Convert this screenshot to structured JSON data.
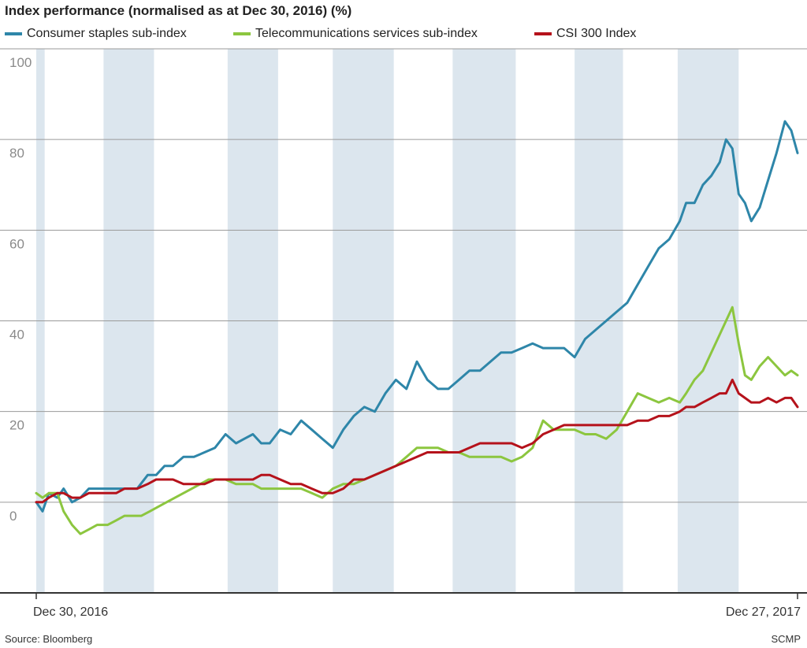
{
  "header": {
    "title": "Index performance (normalised as at Dec 30, 2016) (%)"
  },
  "footer": {
    "source": "Source: Bloomberg",
    "credit": "SCMP"
  },
  "chart_data": {
    "type": "line",
    "title": "Index performance (normalised as at Dec 30, 2016) (%)",
    "ylim": [
      -20,
      100
    ],
    "yticks": [
      0,
      20,
      40,
      60,
      80,
      100
    ],
    "grid": true,
    "legend_position": "top",
    "x_labels": [
      "Dec 30, 2016",
      "Dec 27, 2017"
    ],
    "x_range": [
      "2016-12-30",
      "2017-12-27"
    ],
    "shaded_bands": [
      [
        "2016-12-30",
        "2017-01-03"
      ],
      [
        "2017-01-31",
        "2017-02-24"
      ],
      [
        "2017-03-31",
        "2017-04-24"
      ],
      [
        "2017-05-20",
        "2017-06-18"
      ],
      [
        "2017-07-16",
        "2017-08-15"
      ],
      [
        "2017-09-12",
        "2017-10-05"
      ],
      [
        "2017-10-31",
        "2017-11-29"
      ]
    ],
    "series": [
      {
        "name": "Consumer staples sub-index",
        "color": "#2e86a9",
        "points": [
          [
            "2016-12-30",
            0
          ],
          [
            "2017-01-02",
            -2
          ],
          [
            "2017-01-05",
            2
          ],
          [
            "2017-01-09",
            1
          ],
          [
            "2017-01-12",
            3
          ],
          [
            "2017-01-16",
            0
          ],
          [
            "2017-01-20",
            1
          ],
          [
            "2017-01-24",
            3
          ],
          [
            "2017-02-01",
            3
          ],
          [
            "2017-02-06",
            3
          ],
          [
            "2017-02-10",
            3
          ],
          [
            "2017-02-16",
            3
          ],
          [
            "2017-02-21",
            6
          ],
          [
            "2017-02-25",
            6
          ],
          [
            "2017-03-01",
            8
          ],
          [
            "2017-03-05",
            8
          ],
          [
            "2017-03-10",
            10
          ],
          [
            "2017-03-15",
            10
          ],
          [
            "2017-03-20",
            11
          ],
          [
            "2017-03-25",
            12
          ],
          [
            "2017-03-30",
            15
          ],
          [
            "2017-04-04",
            13
          ],
          [
            "2017-04-08",
            14
          ],
          [
            "2017-04-12",
            15
          ],
          [
            "2017-04-16",
            13
          ],
          [
            "2017-04-20",
            13
          ],
          [
            "2017-04-25",
            16
          ],
          [
            "2017-04-30",
            15
          ],
          [
            "2017-05-05",
            18
          ],
          [
            "2017-05-10",
            16
          ],
          [
            "2017-05-15",
            14
          ],
          [
            "2017-05-20",
            12
          ],
          [
            "2017-05-25",
            16
          ],
          [
            "2017-05-30",
            19
          ],
          [
            "2017-06-04",
            21
          ],
          [
            "2017-06-09",
            20
          ],
          [
            "2017-06-14",
            24
          ],
          [
            "2017-06-19",
            27
          ],
          [
            "2017-06-24",
            25
          ],
          [
            "2017-06-29",
            31
          ],
          [
            "2017-07-04",
            27
          ],
          [
            "2017-07-09",
            25
          ],
          [
            "2017-07-14",
            25
          ],
          [
            "2017-07-19",
            27
          ],
          [
            "2017-07-24",
            29
          ],
          [
            "2017-07-29",
            29
          ],
          [
            "2017-08-03",
            31
          ],
          [
            "2017-08-08",
            33
          ],
          [
            "2017-08-13",
            33
          ],
          [
            "2017-08-18",
            34
          ],
          [
            "2017-08-23",
            35
          ],
          [
            "2017-08-28",
            34
          ],
          [
            "2017-09-02",
            34
          ],
          [
            "2017-09-07",
            34
          ],
          [
            "2017-09-12",
            32
          ],
          [
            "2017-09-17",
            36
          ],
          [
            "2017-09-22",
            38
          ],
          [
            "2017-09-27",
            40
          ],
          [
            "2017-10-02",
            42
          ],
          [
            "2017-10-07",
            44
          ],
          [
            "2017-10-12",
            48
          ],
          [
            "2017-10-17",
            52
          ],
          [
            "2017-10-22",
            56
          ],
          [
            "2017-10-27",
            58
          ],
          [
            "2017-11-01",
            62
          ],
          [
            "2017-11-04",
            66
          ],
          [
            "2017-11-08",
            66
          ],
          [
            "2017-11-12",
            70
          ],
          [
            "2017-11-16",
            72
          ],
          [
            "2017-11-20",
            75
          ],
          [
            "2017-11-23",
            80
          ],
          [
            "2017-11-26",
            78
          ],
          [
            "2017-11-29",
            68
          ],
          [
            "2017-12-02",
            66
          ],
          [
            "2017-12-05",
            62
          ],
          [
            "2017-12-09",
            65
          ],
          [
            "2017-12-13",
            71
          ],
          [
            "2017-12-17",
            77
          ],
          [
            "2017-12-21",
            84
          ],
          [
            "2017-12-24",
            82
          ],
          [
            "2017-12-27",
            77
          ]
        ]
      },
      {
        "name": "Telecommunications services sub-index",
        "color": "#8cc63f",
        "points": [
          [
            "2016-12-30",
            2
          ],
          [
            "2017-01-02",
            1
          ],
          [
            "2017-01-05",
            2
          ],
          [
            "2017-01-09",
            2
          ],
          [
            "2017-01-12",
            -2
          ],
          [
            "2017-01-16",
            -5
          ],
          [
            "2017-01-20",
            -7
          ],
          [
            "2017-01-24",
            -6
          ],
          [
            "2017-01-28",
            -5
          ],
          [
            "2017-02-02",
            -5
          ],
          [
            "2017-02-06",
            -4
          ],
          [
            "2017-02-10",
            -3
          ],
          [
            "2017-02-14",
            -3
          ],
          [
            "2017-02-18",
            -3
          ],
          [
            "2017-02-22",
            -2
          ],
          [
            "2017-02-26",
            -1
          ],
          [
            "2017-03-02",
            0
          ],
          [
            "2017-03-06",
            1
          ],
          [
            "2017-03-10",
            2
          ],
          [
            "2017-03-14",
            3
          ],
          [
            "2017-03-18",
            4
          ],
          [
            "2017-03-22",
            5
          ],
          [
            "2017-03-26",
            5
          ],
          [
            "2017-03-30",
            5
          ],
          [
            "2017-04-04",
            4
          ],
          [
            "2017-04-08",
            4
          ],
          [
            "2017-04-12",
            4
          ],
          [
            "2017-04-16",
            3
          ],
          [
            "2017-04-20",
            3
          ],
          [
            "2017-04-24",
            3
          ],
          [
            "2017-04-30",
            3
          ],
          [
            "2017-05-05",
            3
          ],
          [
            "2017-05-10",
            2
          ],
          [
            "2017-05-15",
            1
          ],
          [
            "2017-05-20",
            3
          ],
          [
            "2017-05-25",
            4
          ],
          [
            "2017-05-30",
            4
          ],
          [
            "2017-06-04",
            5
          ],
          [
            "2017-06-09",
            6
          ],
          [
            "2017-06-14",
            7
          ],
          [
            "2017-06-19",
            8
          ],
          [
            "2017-06-24",
            10
          ],
          [
            "2017-06-29",
            12
          ],
          [
            "2017-07-04",
            12
          ],
          [
            "2017-07-09",
            12
          ],
          [
            "2017-07-14",
            11
          ],
          [
            "2017-07-19",
            11
          ],
          [
            "2017-07-24",
            10
          ],
          [
            "2017-07-29",
            10
          ],
          [
            "2017-08-03",
            10
          ],
          [
            "2017-08-08",
            10
          ],
          [
            "2017-08-13",
            9
          ],
          [
            "2017-08-18",
            10
          ],
          [
            "2017-08-23",
            12
          ],
          [
            "2017-08-28",
            18
          ],
          [
            "2017-09-02",
            16
          ],
          [
            "2017-09-07",
            16
          ],
          [
            "2017-09-12",
            16
          ],
          [
            "2017-09-17",
            15
          ],
          [
            "2017-09-22",
            15
          ],
          [
            "2017-09-27",
            14
          ],
          [
            "2017-10-02",
            16
          ],
          [
            "2017-10-07",
            20
          ],
          [
            "2017-10-12",
            24
          ],
          [
            "2017-10-17",
            23
          ],
          [
            "2017-10-22",
            22
          ],
          [
            "2017-10-27",
            23
          ],
          [
            "2017-11-01",
            22
          ],
          [
            "2017-11-04",
            24
          ],
          [
            "2017-11-08",
            27
          ],
          [
            "2017-11-12",
            29
          ],
          [
            "2017-11-16",
            33
          ],
          [
            "2017-11-20",
            37
          ],
          [
            "2017-11-23",
            40
          ],
          [
            "2017-11-26",
            43
          ],
          [
            "2017-11-29",
            35
          ],
          [
            "2017-12-02",
            28
          ],
          [
            "2017-12-05",
            27
          ],
          [
            "2017-12-09",
            30
          ],
          [
            "2017-12-13",
            32
          ],
          [
            "2017-12-17",
            30
          ],
          [
            "2017-12-21",
            28
          ],
          [
            "2017-12-24",
            29
          ],
          [
            "2017-12-27",
            28
          ]
        ]
      },
      {
        "name": "CSI 300 Index",
        "color": "#b5121b",
        "points": [
          [
            "2016-12-30",
            0
          ],
          [
            "2017-01-02",
            0
          ],
          [
            "2017-01-05",
            1
          ],
          [
            "2017-01-09",
            2
          ],
          [
            "2017-01-12",
            2
          ],
          [
            "2017-01-16",
            1
          ],
          [
            "2017-01-20",
            1
          ],
          [
            "2017-01-24",
            2
          ],
          [
            "2017-02-01",
            2
          ],
          [
            "2017-02-06",
            2
          ],
          [
            "2017-02-10",
            3
          ],
          [
            "2017-02-16",
            3
          ],
          [
            "2017-02-21",
            4
          ],
          [
            "2017-02-25",
            5
          ],
          [
            "2017-03-01",
            5
          ],
          [
            "2017-03-05",
            5
          ],
          [
            "2017-03-10",
            4
          ],
          [
            "2017-03-15",
            4
          ],
          [
            "2017-03-20",
            4
          ],
          [
            "2017-03-25",
            5
          ],
          [
            "2017-03-30",
            5
          ],
          [
            "2017-04-04",
            5
          ],
          [
            "2017-04-08",
            5
          ],
          [
            "2017-04-12",
            5
          ],
          [
            "2017-04-16",
            6
          ],
          [
            "2017-04-20",
            6
          ],
          [
            "2017-04-25",
            5
          ],
          [
            "2017-04-30",
            4
          ],
          [
            "2017-05-05",
            4
          ],
          [
            "2017-05-10",
            3
          ],
          [
            "2017-05-15",
            2
          ],
          [
            "2017-05-20",
            2
          ],
          [
            "2017-05-25",
            3
          ],
          [
            "2017-05-30",
            5
          ],
          [
            "2017-06-04",
            5
          ],
          [
            "2017-06-09",
            6
          ],
          [
            "2017-06-14",
            7
          ],
          [
            "2017-06-19",
            8
          ],
          [
            "2017-06-24",
            9
          ],
          [
            "2017-06-29",
            10
          ],
          [
            "2017-07-04",
            11
          ],
          [
            "2017-07-09",
            11
          ],
          [
            "2017-07-14",
            11
          ],
          [
            "2017-07-19",
            11
          ],
          [
            "2017-07-24",
            12
          ],
          [
            "2017-07-29",
            13
          ],
          [
            "2017-08-03",
            13
          ],
          [
            "2017-08-08",
            13
          ],
          [
            "2017-08-13",
            13
          ],
          [
            "2017-08-18",
            12
          ],
          [
            "2017-08-23",
            13
          ],
          [
            "2017-08-28",
            15
          ],
          [
            "2017-09-02",
            16
          ],
          [
            "2017-09-07",
            17
          ],
          [
            "2017-09-12",
            17
          ],
          [
            "2017-09-17",
            17
          ],
          [
            "2017-09-22",
            17
          ],
          [
            "2017-09-27",
            17
          ],
          [
            "2017-10-02",
            17
          ],
          [
            "2017-10-07",
            17
          ],
          [
            "2017-10-12",
            18
          ],
          [
            "2017-10-17",
            18
          ],
          [
            "2017-10-22",
            19
          ],
          [
            "2017-10-27",
            19
          ],
          [
            "2017-11-01",
            20
          ],
          [
            "2017-11-04",
            21
          ],
          [
            "2017-11-08",
            21
          ],
          [
            "2017-11-12",
            22
          ],
          [
            "2017-11-16",
            23
          ],
          [
            "2017-11-20",
            24
          ],
          [
            "2017-11-23",
            24
          ],
          [
            "2017-11-26",
            27
          ],
          [
            "2017-11-29",
            24
          ],
          [
            "2017-12-02",
            23
          ],
          [
            "2017-12-05",
            22
          ],
          [
            "2017-12-09",
            22
          ],
          [
            "2017-12-13",
            23
          ],
          [
            "2017-12-17",
            22
          ],
          [
            "2017-12-21",
            23
          ],
          [
            "2017-12-24",
            23
          ],
          [
            "2017-12-27",
            21
          ]
        ]
      }
    ]
  }
}
